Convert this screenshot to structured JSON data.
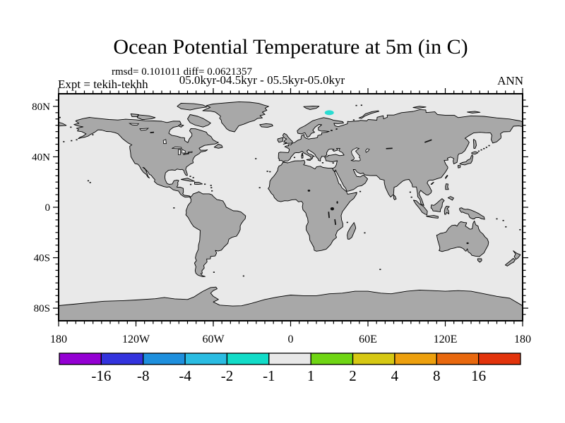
{
  "header": {
    "title": "Ocean Potential Temperature at 5m (in C)",
    "stats_line": "rmsd= 0.101011 diff= 0.0621357",
    "period_line": "05.0kyr-04.5kyr - 05.5kyr-05.0kyr",
    "experiment_label": "Expt = tekih-tekhh",
    "season_label": "ANN"
  },
  "map": {
    "ocean_color": "#E9E9E9",
    "land_color": "#A8A8A8",
    "coast_color": "#000000",
    "x_axis": {
      "tick_labels": [
        "180",
        "120W",
        "60W",
        "0",
        "60E",
        "120E",
        "180"
      ],
      "tick_values_deg": [
        -180,
        -120,
        -60,
        0,
        60,
        120,
        180
      ],
      "minor_interval_deg": 6.6667
    },
    "y_axis": {
      "tick_labels": [
        "80N",
        "40N",
        "0",
        "40S",
        "80S"
      ],
      "tick_values_deg": [
        80,
        40,
        0,
        -40,
        -80
      ],
      "minor_interval_deg": 5
    },
    "anomaly_patch": {
      "lon": 30,
      "lat": 75,
      "color": "#2ADCD2",
      "band": "-2 to -1",
      "location": "Barents Sea"
    }
  },
  "colorbar": {
    "labels": [
      "-16",
      "-8",
      "-4",
      "-2",
      "-1",
      "1",
      "2",
      "4",
      "8",
      "16"
    ],
    "levels": [
      -16,
      -8,
      -4,
      -2,
      -1,
      1,
      2,
      4,
      8,
      16
    ],
    "colors": [
      "#9400D3",
      "#3333DD",
      "#1E8FDD",
      "#2ABCE2",
      "#12DCC8",
      "#E8E8E8",
      "#6FD514",
      "#D6C813",
      "#EDA00E",
      "#E8680E",
      "#E2330B"
    ]
  },
  "chart_data": {
    "type": "heatmap",
    "title": "Ocean Potential Temperature at 5m (in C)",
    "subtitle": "05.0kyr-04.5kyr - 05.5kyr-05.0kyr",
    "stats": {
      "rmsd": 0.101011,
      "diff": 0.0621357
    },
    "experiment": "tekih-tekhh",
    "season": "ANN",
    "projection": "equirectangular world map",
    "x": {
      "range_deg": [
        -180,
        180
      ],
      "ticks": [
        "180",
        "120W",
        "60W",
        "0",
        "60E",
        "120E",
        "180"
      ]
    },
    "y": {
      "range_deg": [
        -90,
        90
      ],
      "ticks": [
        "80N",
        "40N",
        "0",
        "40S",
        "80S"
      ]
    },
    "colorbar_levels": [
      -16,
      -8,
      -4,
      -2,
      -1,
      1,
      2,
      4,
      8,
      16
    ],
    "colorbar_colors": [
      "#9400D3",
      "#3333DD",
      "#1E8FDD",
      "#2ABCE2",
      "#12DCC8",
      "#E8E8E8",
      "#6FD514",
      "#D6C813",
      "#EDA00E",
      "#E8680E",
      "#E2330B"
    ],
    "field_summary": "Temperature difference lies in the -1..1 C band (light gray) over the whole ocean except one small patch in the -2..-1 C band (cyan) near 30E, 75N in the Barents Sea; land is masked gray"
  }
}
